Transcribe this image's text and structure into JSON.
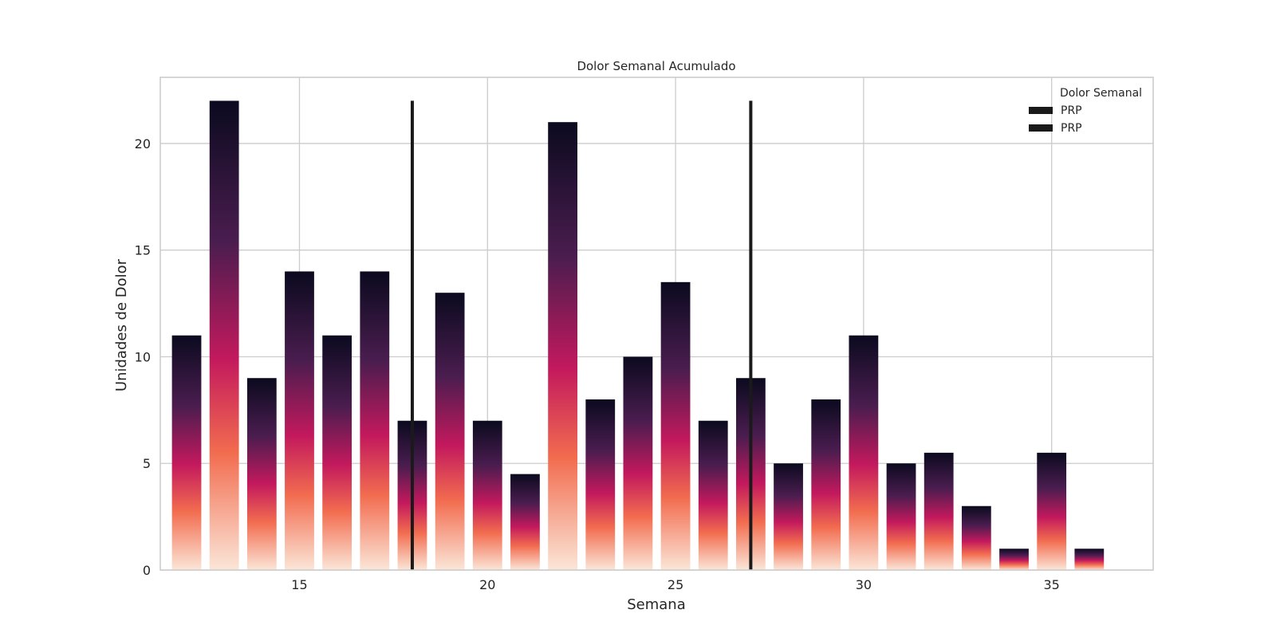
{
  "chart_data": {
    "type": "bar",
    "title": "Dolor Semanal Acumulado",
    "xlabel": "Semana",
    "ylabel": "Unidades de Dolor",
    "xlim": [
      11.3,
      37.7
    ],
    "ylim": [
      0,
      23.1
    ],
    "xticks": [
      15,
      20,
      25,
      30,
      35
    ],
    "yticks": [
      0,
      5,
      10,
      15,
      20
    ],
    "grid": true,
    "x": [
      12,
      13,
      14,
      15,
      16,
      17,
      18,
      19,
      20,
      21,
      22,
      23,
      24,
      25,
      26,
      27,
      28,
      29,
      30,
      31,
      32,
      33,
      34,
      35,
      36
    ],
    "values": [
      11,
      22,
      9,
      14,
      11,
      14,
      7,
      13,
      7,
      4.5,
      21,
      8,
      10,
      13.5,
      7,
      9,
      5,
      8,
      11,
      5,
      5.5,
      3,
      1,
      5.5,
      1
    ],
    "vlines": [
      {
        "x": 18,
        "ymin": 0,
        "ymax": 22
      },
      {
        "x": 27,
        "ymin": 0,
        "ymax": 22
      }
    ],
    "legend": {
      "title": "Dolor Semanal",
      "placement": "top-right",
      "entries": [
        "PRP",
        "PRP"
      ]
    },
    "colors": {
      "gradient_top": "#0b0a1f",
      "gradient_upper": "#4a1d4f",
      "gradient_mid": "#c3195d",
      "gradient_lower": "#f26c4f",
      "gradient_bottom": "#fbe6d8",
      "vline": "#1a1a1a",
      "grid": "#cccccc",
      "axes": "#cccccc"
    }
  }
}
